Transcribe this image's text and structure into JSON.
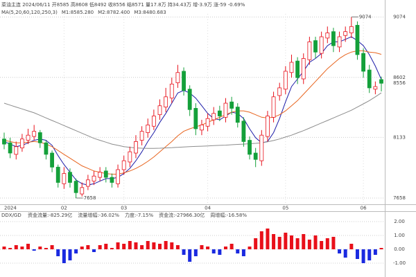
{
  "chart_data": [
    {
      "type": "candlestick",
      "title": "菜油主连 2024/06/11 开8585 高8608 低8492 收8556 结8571 量17.8万 持34.43万 增-3.9万 涨-59 -0.69%",
      "subtitle": "MA(5,20,60,120,250,3)",
      "categories": [
        "2024",
        null,
        null,
        null,
        null,
        null,
        null,
        null,
        null,
        null,
        "02",
        null,
        null,
        null,
        null,
        null,
        null,
        null,
        null,
        null,
        "03",
        null,
        null,
        null,
        null,
        null,
        null,
        null,
        null,
        null,
        null,
        null,
        null,
        null,
        "04",
        null,
        null,
        null,
        null,
        null,
        null,
        null,
        null,
        null,
        null,
        null,
        null,
        "05",
        null,
        null,
        null,
        null,
        null,
        null,
        null,
        null,
        null,
        null,
        null,
        null,
        "06",
        null,
        null,
        null
      ],
      "open": [
        8120,
        8090,
        8000,
        8050,
        8110,
        8140,
        8170,
        8090,
        8010,
        7900,
        7770,
        7860,
        7790,
        7690,
        7750,
        7790,
        7820,
        7870,
        7820,
        7770,
        7880,
        7940,
        8010,
        8110,
        8170,
        8220,
        8310,
        8370,
        8440,
        8560,
        8650,
        8510,
        8360,
        8190,
        8220,
        8270,
        8340,
        8290,
        8410,
        8370,
        8260,
        8110,
        8010,
        7950,
        8140,
        8290,
        8460,
        8510,
        8640,
        8730,
        8590,
        8740,
        8890,
        8790,
        8910,
        8960,
        8840,
        8930,
        8950,
        9010,
        8790,
        8660,
        8510,
        8585
      ],
      "high": [
        8170,
        8130,
        8100,
        8160,
        8200,
        8230,
        8190,
        8110,
        8030,
        7920,
        7900,
        7890,
        7810,
        7780,
        7840,
        7870,
        7900,
        7900,
        7850,
        7920,
        7990,
        8060,
        8150,
        8220,
        8280,
        8350,
        8430,
        8520,
        8600,
        8700,
        8680,
        8540,
        8400,
        8270,
        8320,
        8370,
        8380,
        8440,
        8450,
        8400,
        8290,
        8140,
        8050,
        8190,
        8340,
        8490,
        8560,
        8690,
        8780,
        8760,
        8790,
        8920,
        8920,
        8960,
        9000,
        8990,
        8960,
        9000,
        9074,
        9040,
        8830,
        8700,
        8570,
        8608
      ],
      "low": [
        8040,
        7970,
        7960,
        8020,
        8080,
        8110,
        8050,
        7960,
        7860,
        7740,
        7730,
        7740,
        7658,
        7670,
        7720,
        7760,
        7790,
        7780,
        7740,
        7740,
        7840,
        7900,
        7970,
        8070,
        8130,
        8190,
        8270,
        8330,
        8400,
        8520,
        8460,
        8300,
        8150,
        8150,
        8180,
        8230,
        8260,
        8250,
        8310,
        8210,
        8060,
        7960,
        7900,
        7910,
        8100,
        8250,
        8420,
        8470,
        8600,
        8550,
        8550,
        8700,
        8750,
        8750,
        8870,
        8800,
        8800,
        8880,
        8910,
        8740,
        8600,
        8480,
        8470,
        8492
      ],
      "close": [
        8080,
        8010,
        8060,
        8120,
        8150,
        8180,
        8090,
        8000,
        7900,
        7780,
        7850,
        7780,
        7700,
        7740,
        7800,
        7830,
        7860,
        7820,
        7780,
        7880,
        7950,
        8020,
        8100,
        8180,
        8230,
        8300,
        8380,
        8450,
        8550,
        8640,
        8500,
        8350,
        8200,
        8230,
        8280,
        8320,
        8300,
        8400,
        8360,
        8250,
        8100,
        8000,
        7960,
        8150,
        8300,
        8450,
        8520,
        8650,
        8720,
        8600,
        8750,
        8880,
        8800,
        8920,
        8950,
        8850,
        8920,
        8960,
        9000,
        8780,
        8650,
        8520,
        8530,
        8556
      ],
      "up_color": "#e8101a",
      "down_color": "#14a03a",
      "series": [
        {
          "name": "M1:8585.280",
          "color": "#1c1ca8",
          "values": [
            8100,
            8080,
            8060,
            8070,
            8090,
            8110,
            8120,
            8110,
            8070,
            7990,
            7920,
            7860,
            7800,
            7770,
            7760,
            7770,
            7790,
            7810,
            7810,
            7820,
            7850,
            7890,
            7950,
            8020,
            8100,
            8170,
            8250,
            8320,
            8400,
            8480,
            8500,
            8480,
            8440,
            8380,
            8320,
            8280,
            8270,
            8300,
            8330,
            8320,
            8280,
            8200,
            8130,
            8090,
            8100,
            8170,
            8280,
            8410,
            8530,
            8590,
            8650,
            8720,
            8750,
            8790,
            8850,
            8880,
            8880,
            8900,
            8920,
            8890,
            8850,
            8780,
            8690,
            8585.28
          ]
        },
        {
          "name": "M2:8782.400",
          "color": "#e8641e",
          "values": [
            8110,
            8100,
            8090,
            8090,
            8095,
            8100,
            8095,
            8080,
            8060,
            8030,
            8000,
            7970,
            7940,
            7910,
            7890,
            7870,
            7860,
            7850,
            7845,
            7845,
            7855,
            7870,
            7890,
            7915,
            7945,
            7980,
            8020,
            8060,
            8100,
            8145,
            8180,
            8200,
            8215,
            8230,
            8250,
            8270,
            8290,
            8310,
            8330,
            8340,
            8340,
            8330,
            8310,
            8290,
            8285,
            8290,
            8310,
            8340,
            8380,
            8420,
            8470,
            8520,
            8570,
            8620,
            8670,
            8710,
            8750,
            8780,
            8800,
            8810,
            8810,
            8800,
            8795,
            8782.4
          ]
        },
        {
          "name": "M3:8480.683",
          "color": "#8c8c8c",
          "values": [
            8400,
            8385,
            8370,
            8355,
            8340,
            8325,
            8305,
            8285,
            8265,
            8245,
            8225,
            8205,
            8185,
            8165,
            8145,
            8125,
            8110,
            8095,
            8080,
            8070,
            8060,
            8055,
            8050,
            8048,
            8047,
            8047,
            8048,
            8050,
            8052,
            8055,
            8058,
            8060,
            8062,
            8064,
            8066,
            8068,
            8070,
            8072,
            8075,
            8078,
            8080,
            8083,
            8086,
            8090,
            8098,
            8108,
            8120,
            8135,
            8150,
            8168,
            8185,
            8205,
            8225,
            8245,
            8265,
            8285,
            8305,
            8325,
            8345,
            8370,
            8395,
            8420,
            8450,
            8480.683
          ]
        }
      ],
      "ylim": [
        7620,
        9110
      ],
      "yticks": [
        9074,
        8602,
        8133,
        7658
      ],
      "grid": true,
      "high_label": "9074",
      "low_label": "7658",
      "last_label": "8556"
    },
    {
      "type": "bar",
      "title": "DDX/GD",
      "indicators": [
        "资金流量:-825.29亿",
        "流量增幅:-36.02%",
        "力度:-7.15%",
        "资金流:-27966.30亿",
        "周增幅:-16.58%"
      ],
      "values": [
        0.2,
        0.1,
        0.3,
        0.2,
        0.4,
        -0.1,
        0.2,
        0.1,
        0.3,
        -0.5,
        -1.0,
        -0.8,
        -0.3,
        0.2,
        0.3,
        -0.2,
        0.3,
        0.4,
        0.1,
        0.5,
        0.4,
        0.6,
        0.5,
        0.3,
        0.6,
        0.5,
        0.4,
        0.6,
        0.5,
        0.3,
        -0.4,
        -0.9,
        -0.5,
        0.3,
        0.2,
        -0.3,
        -0.4,
        0.2,
        0.4,
        -0.3,
        -0.5,
        0.2,
        0.8,
        1.3,
        1.5,
        1.1,
        0.9,
        1.2,
        1.0,
        0.8,
        1.1,
        0.7,
        1.0,
        0.6,
        0.8,
        0.9,
        -0.3,
        -0.6,
        0.4,
        -0.7,
        -1.0,
        -0.8,
        -0.4,
        0.1
      ],
      "pos_color": "#e8101a",
      "neg_color": "#1a2ae0",
      "ylim": [
        -1.6,
        2.2
      ],
      "yticks": [
        {
          "value": 2,
          "label": "2.00"
        },
        {
          "value": 1,
          "label": "1.00"
        },
        {
          "value": 0,
          "label": "0.00"
        },
        {
          "value": -1,
          "label": "-1.00"
        }
      ],
      "grid": true
    }
  ]
}
